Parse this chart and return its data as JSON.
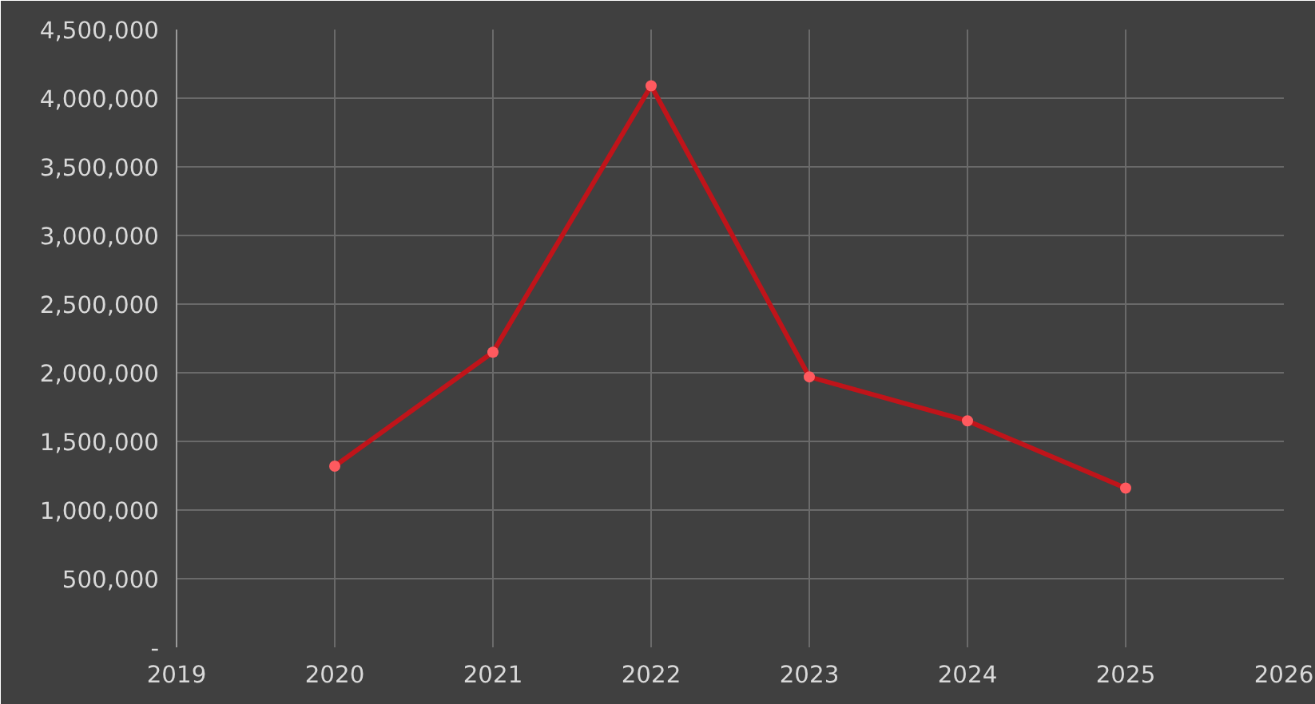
{
  "chart_data": {
    "type": "line",
    "x": [
      2020,
      2021,
      2022,
      2023,
      2024,
      2025
    ],
    "series": [
      {
        "color": "#c0141a",
        "values": [
          1320000,
          2150000,
          4090000,
          1970000,
          1650000,
          1160000
        ]
      }
    ],
    "xlim": [
      2019,
      2026
    ],
    "xticks": [
      2019,
      2020,
      2021,
      2022,
      2023,
      2024,
      2025,
      2026
    ],
    "ylim": [
      0,
      4500000
    ],
    "yticks": [
      {
        "value": 0,
        "label": "-"
      },
      {
        "value": 500000,
        "label": "500,000"
      },
      {
        "value": 1000000,
        "label": "1,000,000"
      },
      {
        "value": 1500000,
        "label": "1,500,000"
      },
      {
        "value": 2000000,
        "label": "2,000,000"
      },
      {
        "value": 2500000,
        "label": "2,500,000"
      },
      {
        "value": 3000000,
        "label": "3,000,000"
      },
      {
        "value": 3500000,
        "label": "3,500,000"
      },
      {
        "value": 4000000,
        "label": "4,000,000"
      },
      {
        "value": 4500000,
        "label": "4,500,000"
      }
    ],
    "grid": true,
    "marker": "circle",
    "line_style": "solid"
  }
}
